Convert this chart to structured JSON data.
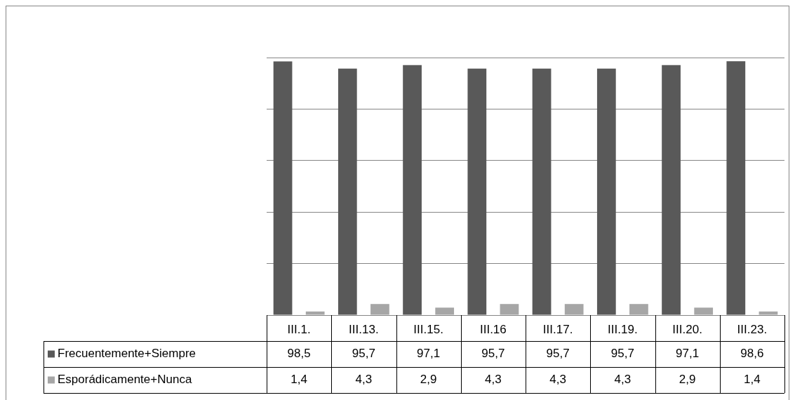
{
  "chart_data": {
    "type": "bar",
    "categories": [
      "III.1.",
      "III.13.",
      "III.15.",
      "III.16",
      "III.17.",
      "III.19.",
      "III.20.",
      "III.23."
    ],
    "series": [
      {
        "name": "Frecuentemente+Siempre",
        "color": "#595959",
        "values": [
          98.5,
          95.7,
          97.1,
          95.7,
          95.7,
          95.7,
          97.1,
          98.6
        ],
        "value_labels": [
          "98,5",
          "95,7",
          "97,1",
          "95,7",
          "95,7",
          "95,7",
          "97,1",
          "98,6"
        ]
      },
      {
        "name": "Esporádicamente+Nunca",
        "color": "#a6a6a6",
        "values": [
          1.4,
          4.3,
          2.9,
          4.3,
          4.3,
          4.3,
          2.9,
          1.4
        ],
        "value_labels": [
          "1,4",
          "4,3",
          "2,9",
          "4,3",
          "4,3",
          "4,3",
          "2,9",
          "1,4"
        ]
      }
    ],
    "grid": "y",
    "legend": "bottom",
    "tick_labels": "x"
  }
}
